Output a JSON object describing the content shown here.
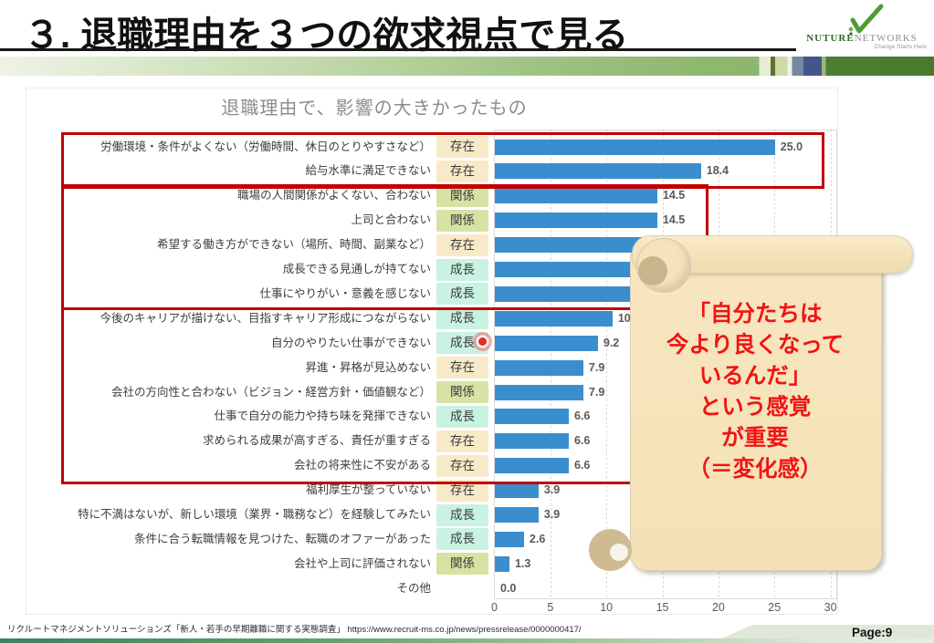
{
  "header": {
    "title": "３. 退職理由を３つの欲求視点で見る",
    "logo": {
      "brand_primary": "NUTURE",
      "brand_secondary": "NETWORKS",
      "tagline": "Change Starts Here",
      "mark": "green-checkmark"
    }
  },
  "chart_data": {
    "type": "bar",
    "orientation": "horizontal",
    "title": "退職理由で、影響の大きかったもの",
    "xlim": [
      0,
      30
    ],
    "x_ticks": [
      0,
      5,
      10,
      15,
      20,
      25,
      30
    ],
    "grid": "dashed-vertical",
    "bar_color": "#3b8ecd",
    "tag_colors": {
      "存在": "#f8e9c8",
      "関係": "#d6e3a4",
      "成長": "#c9f2e2"
    },
    "rows": [
      {
        "category": "労働環境・条件がよくない（労働時間、休日のとりやすさなど）",
        "tag": "存在",
        "value": 25.0,
        "value_label": "25.0"
      },
      {
        "category": "給与水準に満足できない",
        "tag": "存在",
        "value": 18.4,
        "value_label": "18.4"
      },
      {
        "category": "職場の人間関係がよくない、合わない",
        "tag": "関係",
        "value": 14.5,
        "value_label": "14.5"
      },
      {
        "category": "上司と合わない",
        "tag": "関係",
        "value": 14.5,
        "value_label": "14.5"
      },
      {
        "category": "希望する働き方ができない（場所、時間、副業など）",
        "tag": "存在",
        "value": 13.2,
        "value_label": ""
      },
      {
        "category": "成長できる見通しが持てない",
        "tag": "成長",
        "value": 13.2,
        "value_label": ""
      },
      {
        "category": "仕事にやりがい・意義を感じない",
        "tag": "成長",
        "value": 12.8,
        "value_label": ""
      },
      {
        "category": "今後のキャリアが描けない、目指すキャリア形成につながらない",
        "tag": "成長",
        "value": 10.5,
        "value_label": "10.5"
      },
      {
        "category": "自分のやりたい仕事ができない",
        "tag": "成長",
        "value": 9.2,
        "value_label": "9.2"
      },
      {
        "category": "昇進・昇格が見込めない",
        "tag": "存在",
        "value": 7.9,
        "value_label": "7.9"
      },
      {
        "category": "会社の方向性と合わない（ビジョン・経営方針・価値観など）",
        "tag": "関係",
        "value": 7.9,
        "value_label": "7.9"
      },
      {
        "category": "仕事で自分の能力や持ち味を発揮できない",
        "tag": "成長",
        "value": 6.6,
        "value_label": "6.6"
      },
      {
        "category": "求められる成果が高すぎる、責任が重すぎる",
        "tag": "存在",
        "value": 6.6,
        "value_label": "6.6"
      },
      {
        "category": "会社の将来性に不安がある",
        "tag": "存在",
        "value": 6.6,
        "value_label": "6.6"
      },
      {
        "category": "福利厚生が整っていない",
        "tag": "存在",
        "value": 3.9,
        "value_label": "3.9"
      },
      {
        "category": "特に不満はないが、新しい環境（業界・職務など）を経験してみたい",
        "tag": "成長",
        "value": 3.9,
        "value_label": "3.9"
      },
      {
        "category": "条件に合う転職情報を見つけた、転職のオファーがあった",
        "tag": "成長",
        "value": 2.6,
        "value_label": "2.6"
      },
      {
        "category": "会社や上司に評価されない",
        "tag": "関係",
        "value": 1.3,
        "value_label": "1.3"
      },
      {
        "category": "その他",
        "tag": "",
        "value": 0.0,
        "value_label": "0.0"
      }
    ],
    "highlight_groups": [
      {
        "rows": [
          0,
          1
        ],
        "color": "#c00000"
      },
      {
        "rows": [
          2,
          6
        ],
        "color": "#c00000"
      },
      {
        "rows": [
          7,
          13
        ],
        "color": "#c00000"
      }
    ]
  },
  "callout": {
    "lines": [
      "「自分たちは",
      "今より良くなって",
      "いるんだ」",
      "という感覚",
      "が重要",
      "（＝変化感）"
    ],
    "text_color": "#f11313",
    "scroll_fill": "#f5e3bb"
  },
  "footer": {
    "source": "リクルートマネジメントソリューションズ「新人・若手の早期離職に関する実態調査」 https://www.recruit-ms.co.jp/news/pressrelease/0000000417/",
    "page": "Page:9"
  }
}
